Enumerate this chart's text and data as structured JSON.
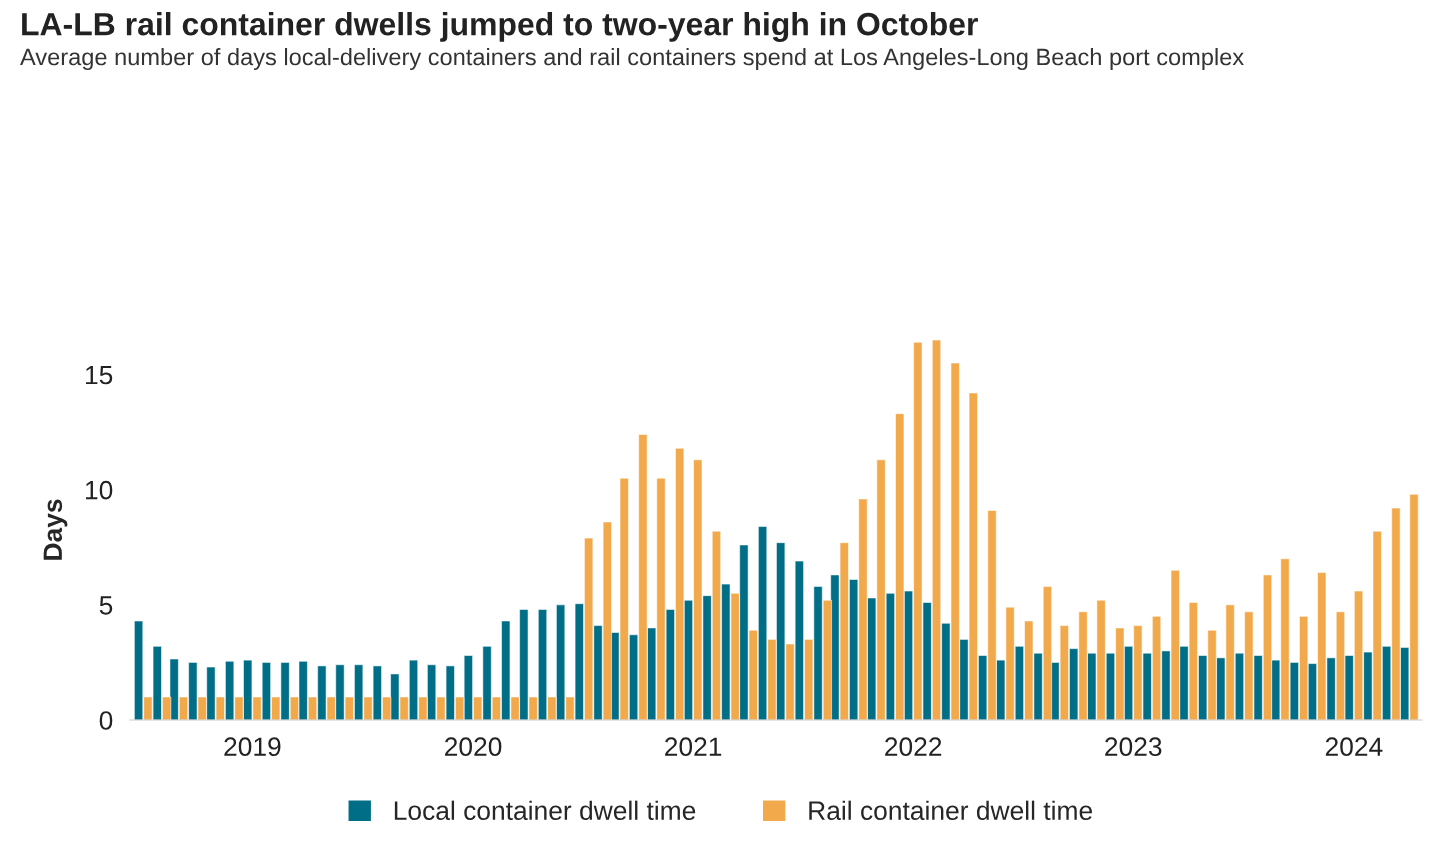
{
  "chart_data": {
    "type": "bar",
    "title": "LA-LB rail container dwells jumped to two-year high in October",
    "subtitle": "Average number of days local-delivery containers and rail containers spend at Los Angeles-Long Beach port complex",
    "ylabel": "Days",
    "x": [
      "2019-01",
      "2019-02",
      "2019-03",
      "2019-04",
      "2019-05",
      "2019-06",
      "2019-07",
      "2019-08",
      "2019-09",
      "2019-10",
      "2019-11",
      "2019-12",
      "2020-01",
      "2020-02",
      "2020-03",
      "2020-04",
      "2020-05",
      "2020-06",
      "2020-07",
      "2020-08",
      "2020-09",
      "2020-10",
      "2020-11",
      "2020-12",
      "2021-01",
      "2021-02",
      "2021-03",
      "2021-04",
      "2021-05",
      "2021-06",
      "2021-07",
      "2021-08",
      "2021-09",
      "2021-10",
      "2021-11",
      "2021-12",
      "2022-01",
      "2022-02",
      "2022-03",
      "2022-04",
      "2022-05",
      "2022-06",
      "2022-07",
      "2022-08",
      "2022-09",
      "2022-10",
      "2022-11",
      "2022-12",
      "2023-01",
      "2023-02",
      "2023-03",
      "2023-04",
      "2023-05",
      "2023-06",
      "2023-07",
      "2023-08",
      "2023-09",
      "2023-10",
      "2023-11",
      "2023-12",
      "2024-01",
      "2024-02",
      "2024-03",
      "2024-04",
      "2024-05",
      "2024-06",
      "2024-07",
      "2024-08",
      "2024-09",
      "2024-10"
    ],
    "series": [
      {
        "name": "Local container dwell time",
        "color": "#006e87",
        "values": [
          4.3,
          3.2,
          2.65,
          2.5,
          2.3,
          2.55,
          2.6,
          2.5,
          2.5,
          2.55,
          2.35,
          2.4,
          2.4,
          2.35,
          2.0,
          2.6,
          2.4,
          2.35,
          2.8,
          3.2,
          4.3,
          4.8,
          4.8,
          5.0,
          5.05,
          4.1,
          3.8,
          3.7,
          4.0,
          4.8,
          5.2,
          5.4,
          5.9,
          7.6,
          8.4,
          7.7,
          6.9,
          5.8,
          6.3,
          6.1,
          5.3,
          5.5,
          5.6,
          5.1,
          4.2,
          3.5,
          2.8,
          2.6,
          3.2,
          2.9,
          2.5,
          3.1,
          2.9,
          2.9,
          3.2,
          2.9,
          3.0,
          3.2,
          2.8,
          2.7,
          2.9,
          2.8,
          2.6,
          2.5,
          2.45,
          2.7,
          2.8,
          2.95,
          3.2,
          3.15
        ]
      },
      {
        "name": "Rail container dwell time",
        "color": "#f2a94b",
        "values": [
          1.0,
          1.0,
          1.0,
          1.0,
          1.0,
          1.0,
          1.0,
          1.0,
          1.0,
          1.0,
          1.0,
          1.0,
          1.0,
          1.0,
          1.0,
          1.0,
          1.0,
          1.0,
          1.0,
          1.0,
          1.0,
          1.0,
          1.0,
          1.0,
          7.9,
          8.6,
          10.5,
          12.4,
          10.5,
          11.8,
          11.3,
          8.2,
          5.5,
          3.9,
          3.5,
          3.3,
          3.5,
          5.2,
          7.7,
          9.6,
          11.3,
          13.3,
          16.4,
          16.5,
          15.5,
          14.2,
          9.1,
          4.9,
          4.3,
          5.8,
          4.1,
          4.7,
          5.2,
          4.0,
          4.1,
          4.5,
          6.5,
          5.1,
          3.9,
          5.0,
          4.7,
          6.3,
          7.0,
          4.5,
          6.4,
          4.7,
          5.6,
          8.2,
          9.2,
          9.8
        ]
      }
    ],
    "xlim": [
      "2018-12-10",
      "2024-10-22"
    ],
    "xticks": [
      {
        "value": "2019-07-01",
        "label": "2019"
      },
      {
        "value": "2020-07-01",
        "label": "2020"
      },
      {
        "value": "2021-07-01",
        "label": "2021"
      },
      {
        "value": "2022-07-01",
        "label": "2022"
      },
      {
        "value": "2023-07-01",
        "label": "2023"
      },
      {
        "value": "2024-07-01",
        "label": "2024"
      }
    ],
    "ylim": [
      0,
      16.5
    ],
    "yticks": [
      0,
      5,
      10,
      15
    ],
    "grid": false,
    "legend": "bottom"
  }
}
